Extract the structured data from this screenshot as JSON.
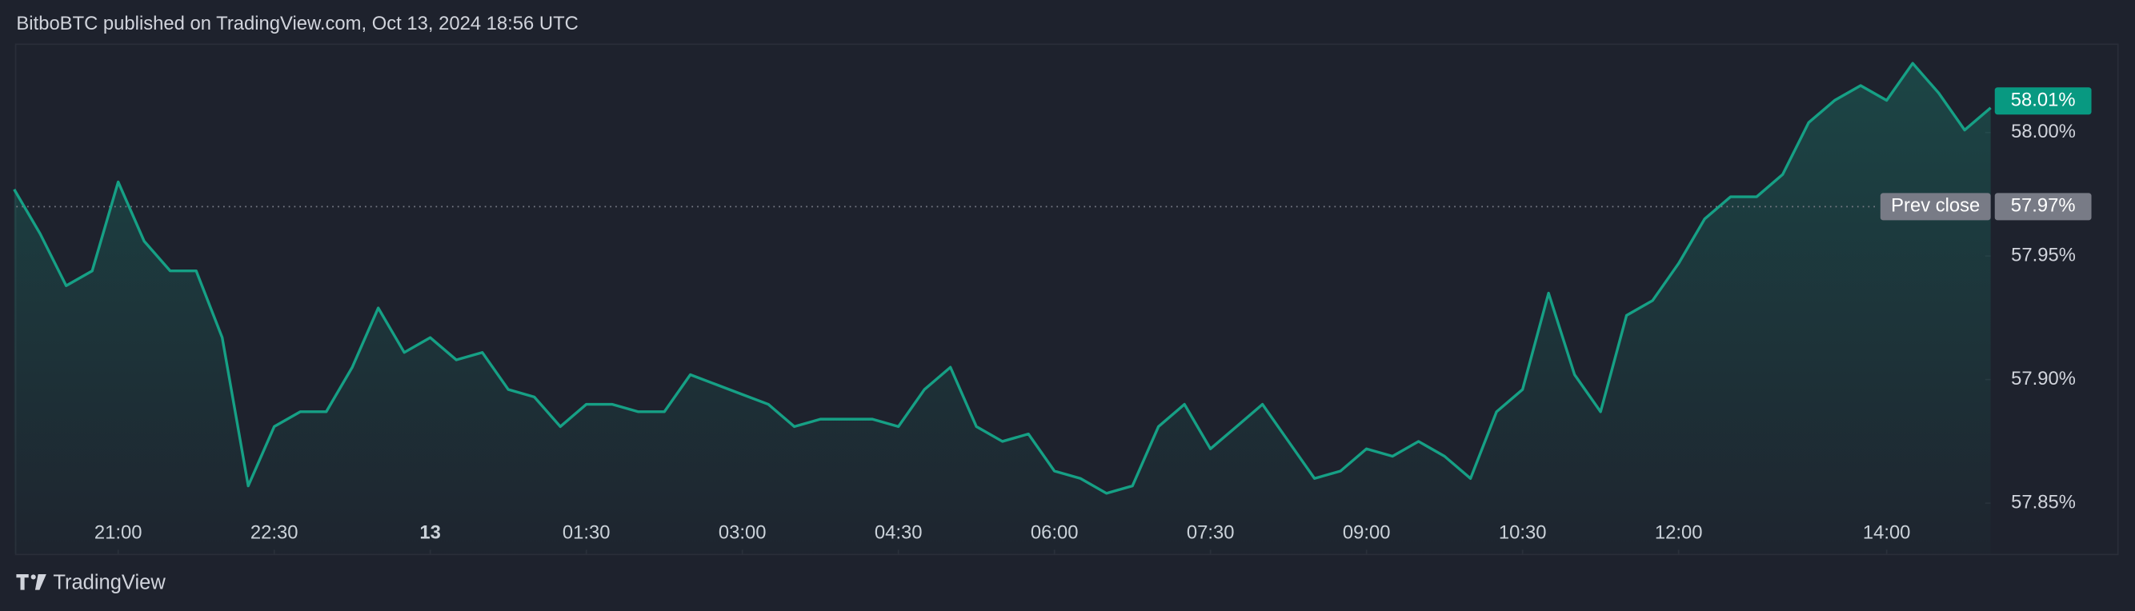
{
  "chart_data": {
    "type": "line",
    "title": "BitboBTC published on TradingView.com, Oct 13, 2024 18:56 UTC",
    "x": [
      "20:00",
      "20:15",
      "20:30",
      "20:45",
      "21:00",
      "21:15",
      "21:30",
      "21:45",
      "22:00",
      "22:15",
      "22:30",
      "22:45",
      "23:00",
      "23:15",
      "23:30",
      "23:45",
      "00:00",
      "00:15",
      "00:30",
      "00:45",
      "01:00",
      "01:15",
      "01:30",
      "01:45",
      "02:00",
      "02:15",
      "02:30",
      "02:45",
      "03:00",
      "03:15",
      "03:30",
      "03:45",
      "04:00",
      "04:15",
      "04:30",
      "04:45",
      "05:00",
      "05:15",
      "05:30",
      "05:45",
      "06:00",
      "06:15",
      "06:30",
      "06:45",
      "07:00",
      "07:15",
      "07:30",
      "07:45",
      "08:00",
      "08:15",
      "08:30",
      "08:45",
      "09:00",
      "09:15",
      "09:30",
      "09:45",
      "10:00",
      "10:15",
      "10:30",
      "10:45",
      "11:00",
      "11:15",
      "11:30",
      "11:45",
      "12:00",
      "12:15",
      "12:30",
      "12:45",
      "13:00",
      "13:15",
      "13:30",
      "13:45",
      "14:00",
      "14:15",
      "14:30",
      "14:45",
      "15:00"
    ],
    "series": [
      {
        "color": "#16a085",
        "values": [
          57.977,
          57.959,
          57.938,
          57.944,
          57.98,
          57.956,
          57.944,
          57.944,
          57.917,
          57.857,
          57.881,
          57.887,
          57.887,
          57.905,
          57.929,
          57.911,
          57.917,
          57.908,
          57.911,
          57.896,
          57.893,
          57.881,
          57.89,
          57.89,
          57.887,
          57.887,
          57.902,
          57.898,
          57.894,
          57.89,
          57.881,
          57.884,
          57.884,
          57.884,
          57.881,
          57.896,
          57.905,
          57.881,
          57.875,
          57.878,
          57.863,
          57.86,
          57.854,
          57.857,
          57.881,
          57.89,
          57.872,
          57.881,
          57.89,
          57.875,
          57.86,
          57.863,
          57.872,
          57.869,
          57.875,
          57.869,
          57.86,
          57.887,
          57.896,
          57.935,
          57.902,
          57.887,
          57.926,
          57.932,
          57.947,
          57.965,
          57.974,
          57.974,
          57.983,
          58.004,
          58.013,
          58.019,
          58.013,
          58.028,
          58.016,
          58.001,
          58.01
        ]
      }
    ],
    "last_label": {
      "value": 58.01,
      "label": "58.01%"
    },
    "prev_close": {
      "text": "Prev close",
      "value": 57.97,
      "label": "57.97%"
    },
    "ylim": [
      57.8295,
      58.036
    ],
    "yticks": [
      {
        "value": 58,
        "label": "58.00%"
      },
      {
        "value": 57.95,
        "label": "57.95%"
      },
      {
        "value": 57.9,
        "label": "57.90%"
      },
      {
        "value": 57.85,
        "label": "57.85%"
      }
    ],
    "xticks": [
      "21:00",
      "22:30",
      {
        "value": "00:00",
        "label": "13"
      },
      "01:30",
      "03:00",
      "04:30",
      "06:00",
      "07:30",
      "09:00",
      "10:30",
      "12:00",
      "14:00"
    ],
    "grid": false
  },
  "brand": "TradingView"
}
